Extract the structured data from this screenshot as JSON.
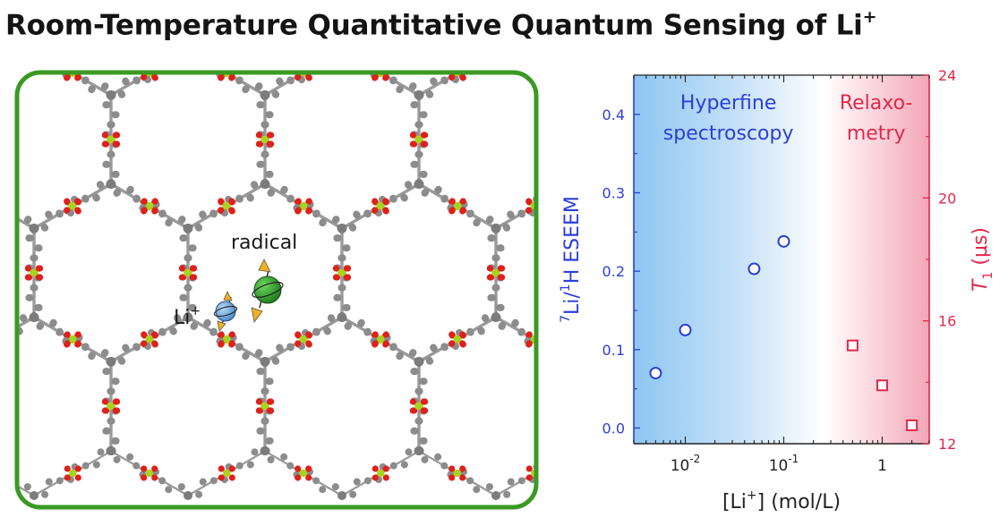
{
  "title": {
    "text": "Room-Temperature Quantitative Quantum Sensing of Li",
    "superscript": "+"
  },
  "framework_panel": {
    "label_radical": "radical",
    "label_li_base": "Li",
    "label_li_sup": "+",
    "colors": {
      "frame": "#3a9a22",
      "carbon": "#8c8c8c",
      "oxygen": "#e0201a",
      "metal": "#a8d420",
      "radical": "#2a9a2a",
      "lithium": "#6aa8dc",
      "spin_arrow": "#f0b020"
    }
  },
  "chart_data": {
    "type": "scatter",
    "x_scale": "log",
    "xlim": [
      0.003,
      3
    ],
    "x_ticks": [
      {
        "value": 0.01,
        "base": "10",
        "exp": "-2"
      },
      {
        "value": 0.1,
        "base": "10",
        "exp": "-1"
      },
      {
        "value": 1,
        "label": "1"
      }
    ],
    "xlabel": {
      "pre": "[Li",
      "sup": "+",
      "post": "] (mol/L)"
    },
    "y_left": {
      "label": {
        "sup1": "7",
        "mid": "Li/",
        "sup2": "1",
        "post": "H ESEEM"
      },
      "ylim": [
        -0.02,
        0.45
      ],
      "ticks": [
        "0.0",
        "0.1",
        "0.2",
        "0.3",
        "0.4"
      ],
      "tick_values": [
        0,
        0.1,
        0.2,
        0.3,
        0.4
      ],
      "color": "#2b3fd6"
    },
    "y_right": {
      "label": {
        "italic": "T",
        "sub": "1",
        "post": " (μs)"
      },
      "ylim": [
        12,
        24
      ],
      "ticks": [
        "12",
        "16",
        "20",
        "24"
      ],
      "tick_values": [
        12,
        16,
        20,
        24
      ],
      "color": "#e0284a"
    },
    "regions": [
      {
        "label_line1": "Hyperfine",
        "label_line2": "spectroscopy",
        "color": "#2b3fd6",
        "x_from": 0.003,
        "x_to": 0.25
      },
      {
        "label_line1": "Relaxo-",
        "label_line2": "metry",
        "color": "#e0284a",
        "x_from": 0.25,
        "x_to": 3
      }
    ],
    "series": [
      {
        "axis": "left",
        "marker": "circle",
        "color": "#2b3fd6",
        "points": [
          {
            "x": 0.005,
            "y": 0.07
          },
          {
            "x": 0.01,
            "y": 0.125
          },
          {
            "x": 0.05,
            "y": 0.203
          },
          {
            "x": 0.1,
            "y": 0.238
          }
        ]
      },
      {
        "axis": "right",
        "marker": "square",
        "color": "#e0284a",
        "points": [
          {
            "x": 0.5,
            "y": 15.2
          },
          {
            "x": 1,
            "y": 13.9
          },
          {
            "x": 2,
            "y": 12.6
          }
        ]
      }
    ]
  }
}
